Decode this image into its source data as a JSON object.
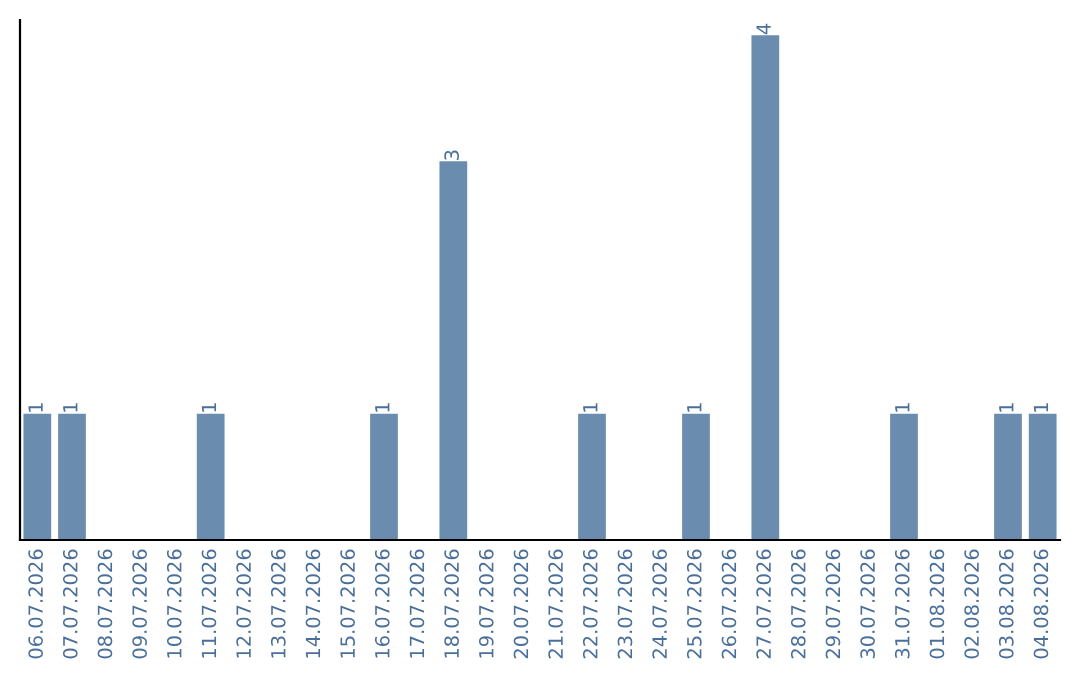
{
  "chart_data": {
    "type": "bar",
    "categories": [
      "06.07.2026",
      "07.07.2026",
      "08.07.2026",
      "09.07.2026",
      "10.07.2026",
      "11.07.2026",
      "12.07.2026",
      "13.07.2026",
      "14.07.2026",
      "15.07.2026",
      "16.07.2026",
      "17.07.2026",
      "18.07.2026",
      "19.07.2026",
      "20.07.2026",
      "21.07.2026",
      "22.07.2026",
      "23.07.2026",
      "24.07.2026",
      "25.07.2026",
      "26.07.2026",
      "27.07.2026",
      "28.07.2026",
      "29.07.2026",
      "30.07.2026",
      "31.07.2026",
      "01.08.2026",
      "02.08.2026",
      "03.08.2026",
      "04.08.2026"
    ],
    "values": [
      1,
      1,
      0,
      0,
      0,
      1,
      0,
      0,
      0,
      0,
      1,
      0,
      3,
      0,
      0,
      0,
      1,
      0,
      0,
      1,
      0,
      4,
      0,
      0,
      0,
      1,
      0,
      0,
      1,
      1
    ],
    "value_labels": [
      "1",
      "1",
      null,
      null,
      null,
      "1",
      null,
      null,
      null,
      null,
      "1",
      null,
      "3",
      null,
      null,
      null,
      "1",
      null,
      null,
      "1",
      null,
      "4",
      null,
      null,
      null,
      "1",
      null,
      null,
      "1",
      "1"
    ],
    "color": "#6a8caf",
    "grid": false,
    "legend": false
  }
}
